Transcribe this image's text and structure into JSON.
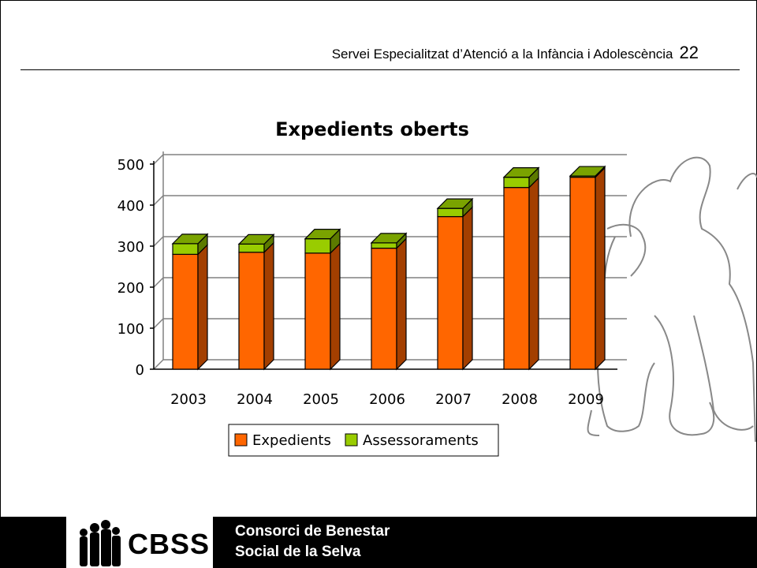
{
  "header": {
    "title": "Servei Especialitzat d’Atenció a la Infància i Adolescència",
    "page_number": "22"
  },
  "chart_data": {
    "type": "bar",
    "stacked": true,
    "title": "Expedients oberts",
    "categories": [
      "2003",
      "2004",
      "2005",
      "2006",
      "2007",
      "2008",
      "2009"
    ],
    "series": [
      {
        "name": "Expedients",
        "values": [
          280,
          285,
          283,
          295,
          372,
          443,
          468
        ],
        "color": "#ff6600"
      },
      {
        "name": "Assessoraments",
        "values": [
          26,
          20,
          35,
          13,
          20,
          25,
          3
        ],
        "color": "#99cc00"
      }
    ],
    "ylim": [
      0,
      500
    ],
    "yticks": [
      "0",
      "100",
      "200",
      "300",
      "400",
      "500"
    ],
    "grid": true,
    "legend": "bottom"
  },
  "footer": {
    "logo_text": "CBSS",
    "org_line1": "Consorci de Benestar",
    "org_line2": "Social de la Selva"
  }
}
